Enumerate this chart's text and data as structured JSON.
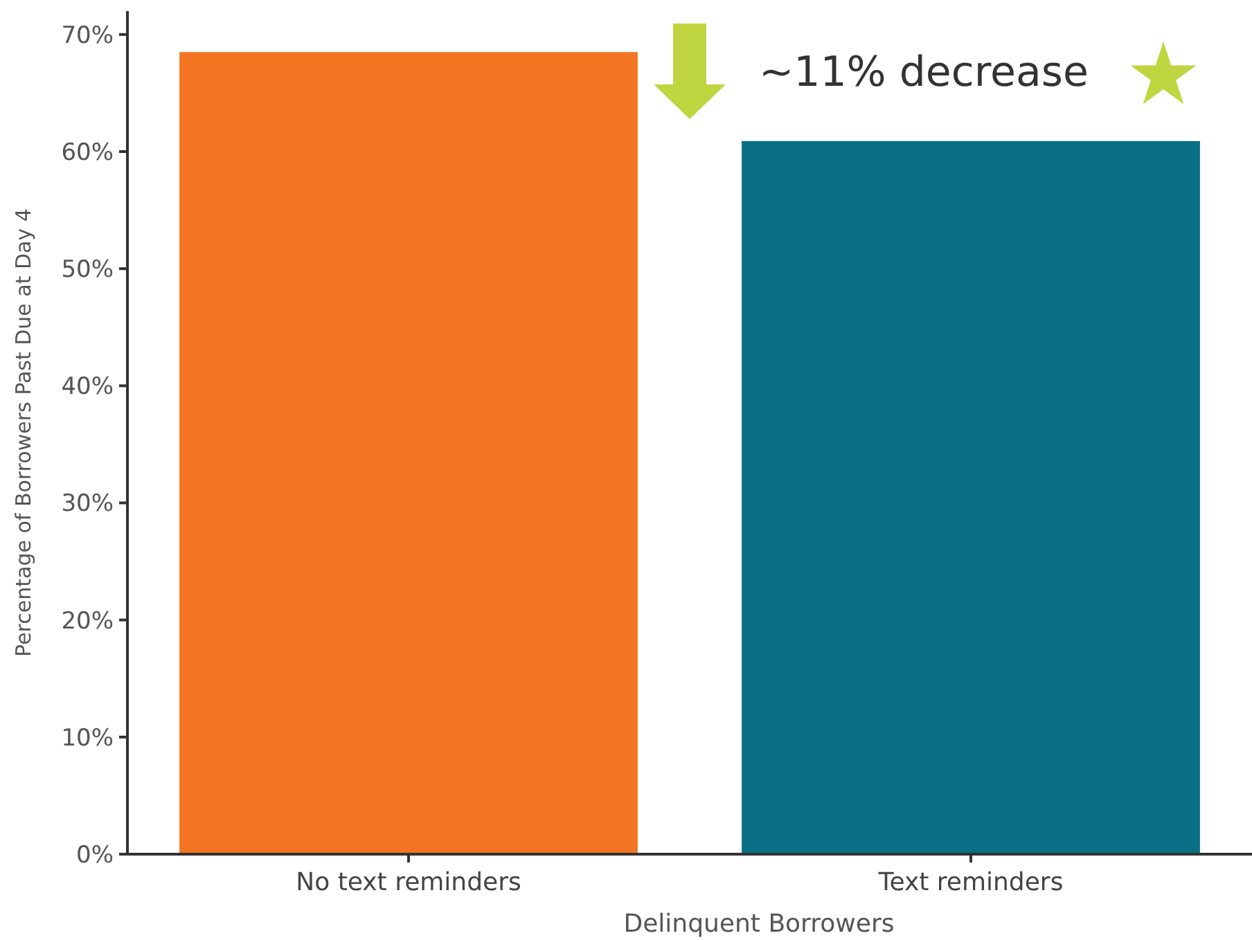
{
  "chart_data": {
    "type": "bar",
    "xlabel": "Delinquent Borrowers",
    "ylabel": "Percentage of Borrowers Past Due at Day 4",
    "categories": [
      "No text reminders",
      "Text reminders"
    ],
    "values": [
      68.5,
      60.9
    ],
    "colors": [
      "#f37421",
      "#086f84"
    ],
    "ylim": [
      0,
      72
    ],
    "yticks": [
      {
        "value": 0,
        "label": "0%"
      },
      {
        "value": 10,
        "label": "10%"
      },
      {
        "value": 20,
        "label": "20%"
      },
      {
        "value": 30,
        "label": "30%"
      },
      {
        "value": 40,
        "label": "40%"
      },
      {
        "value": 50,
        "label": "50%"
      },
      {
        "value": 60,
        "label": "60%"
      },
      {
        "value": 70,
        "label": "70%"
      }
    ],
    "grid": false,
    "annotations": [
      "~11% decrease"
    ]
  }
}
